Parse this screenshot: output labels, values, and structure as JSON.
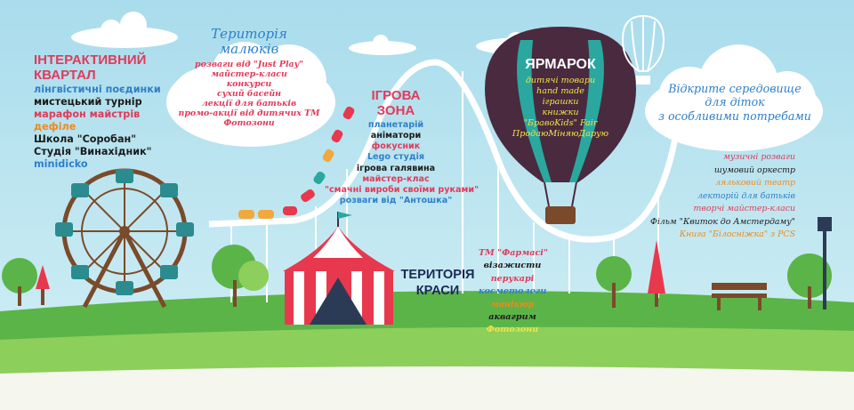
{
  "colors": {
    "sky": "#a9dcec",
    "grass": "#5bb447",
    "grass_light": "#8ccf5a",
    "coaster": "#ffffff",
    "tent_red": "#e8384d",
    "balloon_dark": "#4a2a3e",
    "balloon_teal": "#2aa8a0",
    "wheel": "#7a4a2a",
    "cabin": "#2b8b8e"
  },
  "kvartal": {
    "title1": "ІНТЕРАКТИВНИЙ",
    "title2": "КВАРТАЛ",
    "items": [
      {
        "text": "лінгвістичні поєдинки",
        "color": "#2f7fc9"
      },
      {
        "text": "мистецький турнір",
        "color": "#1b1b1b"
      },
      {
        "text": "марафон майстрів",
        "color": "#e23a5a"
      },
      {
        "text": "дефіле",
        "color": "#f08a1d"
      },
      {
        "text": "Школа \"Соробан\"",
        "color": "#1b1b1b"
      },
      {
        "text": "Студія \"Винахідник\"",
        "color": "#1b1b1b"
      },
      {
        "text": "minidicko",
        "color": "#2f7fc9"
      }
    ]
  },
  "malyunky": {
    "title1": "Територія",
    "title2": "малюків",
    "items": [
      {
        "text": "розваги від \"Just Play\"",
        "color": "#e23a5a"
      },
      {
        "text": "майстер-класи",
        "color": "#e23a5a"
      },
      {
        "text": "конкурси",
        "color": "#e23a5a"
      },
      {
        "text": "сухий басейн",
        "color": "#e23a5a"
      },
      {
        "text": "лекції для батьків",
        "color": "#e23a5a"
      },
      {
        "text": "промо-акції від дитячих ТМ",
        "color": "#e23a5a"
      },
      {
        "text": "Фотозони",
        "color": "#e23a5a"
      }
    ]
  },
  "igrova": {
    "title1": "ІГРОВА",
    "title2": "ЗОНА",
    "items": [
      {
        "text": "планетарій",
        "color": "#2f7fc9"
      },
      {
        "text": "аніматори",
        "color": "#1b1b1b"
      },
      {
        "text": "фокусник",
        "color": "#e23a5a"
      },
      {
        "text": "Lego студія",
        "color": "#2f7fc9"
      },
      {
        "text": "ігрова галявина",
        "color": "#1b1b1b"
      },
      {
        "text": "майстер-клас",
        "color": "#e23a5a"
      },
      {
        "text": "\"смачні вироби своїми руками\"",
        "color": "#e23a5a"
      },
      {
        "text": "розваги від \"Антошка\"",
        "color": "#2f7fc9"
      }
    ]
  },
  "yarmarok": {
    "title": "ЯРМАРОК",
    "items": [
      {
        "text": "дитячі товари",
        "color": "#f2e34a"
      },
      {
        "text": "hand made",
        "color": "#f2e34a"
      },
      {
        "text": "іграшки",
        "color": "#f2e34a"
      },
      {
        "text": "книжки",
        "color": "#f2e34a"
      },
      {
        "text": "\"БравоKids\" Fair",
        "color": "#f2e34a"
      },
      {
        "text": "ПродаюМіняюДарую",
        "color": "#f2e34a"
      }
    ]
  },
  "vidkryte": {
    "lines": [
      "Відкрите середовище",
      "для діток",
      "з особливими потребами"
    ]
  },
  "krasa": {
    "title1": "ТЕРИТОРІЯ",
    "title2": "КРАСИ",
    "items": [
      {
        "text": "ТМ \"Фармасі\"",
        "color": "#e23a5a"
      },
      {
        "text": "візажисти",
        "color": "#1b1b1b"
      },
      {
        "text": "перукарі",
        "color": "#e23a5a"
      },
      {
        "text": "косметологи",
        "color": "#2f7fc9"
      },
      {
        "text": "манікюр",
        "color": "#f08a1d"
      },
      {
        "text": "аквагрим",
        "color": "#1b1b1b"
      },
      {
        "text": "Фотозони",
        "color": "#f2e34a"
      }
    ]
  },
  "music": {
    "items": [
      {
        "text": "музичні розваги",
        "color": "#e23a5a"
      },
      {
        "text": "шумовий оркестр",
        "color": "#1b1b1b"
      },
      {
        "text": "ляльковий театр",
        "color": "#f08a1d"
      },
      {
        "text": "лекторій для батьків",
        "color": "#2f7fc9"
      },
      {
        "text": "творчі майстер-класи",
        "color": "#e23a5a"
      },
      {
        "text": "Фільм \"Квиток до Амстердаму\"",
        "color": "#1b1b1b"
      },
      {
        "text": "Книга \"Білосніжка\" з PCS",
        "color": "#f08a1d"
      }
    ]
  }
}
